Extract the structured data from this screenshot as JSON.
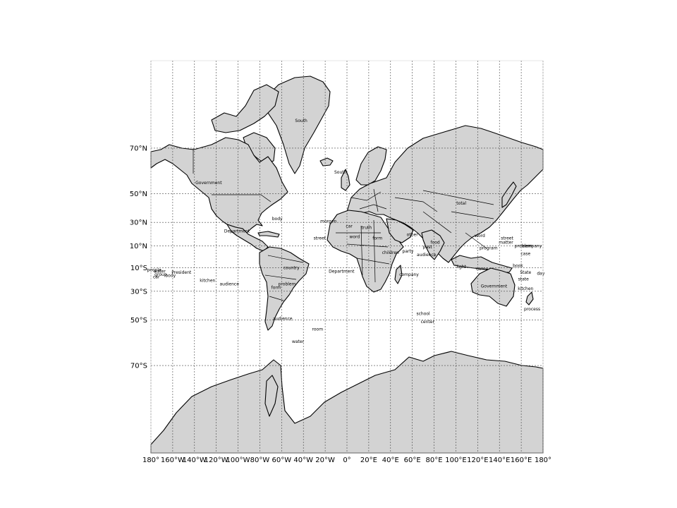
{
  "map": {
    "projection": "mercator",
    "background": "#ffffff",
    "land_color": "#d3d3d3",
    "coast_color": "#000000",
    "lon_range": [
      -180,
      180
    ],
    "lat_range": [
      -85,
      85
    ],
    "meridian_ticks": [
      {
        "lon": -180,
        "label": "180°"
      },
      {
        "lon": -160,
        "label": "160°W"
      },
      {
        "lon": -140,
        "label": "140°W"
      },
      {
        "lon": -120,
        "label": "120°W"
      },
      {
        "lon": -100,
        "label": "100°W"
      },
      {
        "lon": -80,
        "label": "80°W"
      },
      {
        "lon": -60,
        "label": "60°W"
      },
      {
        "lon": -40,
        "label": "40°W"
      },
      {
        "lon": -20,
        "label": "20°W"
      },
      {
        "lon": 0,
        "label": "0°"
      },
      {
        "lon": 20,
        "label": "20°E"
      },
      {
        "lon": 40,
        "label": "40°E"
      },
      {
        "lon": 60,
        "label": "60°E"
      },
      {
        "lon": 80,
        "label": "80°E"
      },
      {
        "lon": 100,
        "label": "100°E"
      },
      {
        "lon": 120,
        "label": "120°E"
      },
      {
        "lon": 140,
        "label": "140°E"
      },
      {
        "lon": 160,
        "label": "160°E"
      },
      {
        "lon": 180,
        "label": "180°"
      }
    ],
    "parallel_ticks": [
      {
        "lat": 70,
        "label": "70°N"
      },
      {
        "lat": 50,
        "label": "50°N"
      },
      {
        "lat": 30,
        "label": "30°N"
      },
      {
        "lat": 10,
        "label": "10°N"
      },
      {
        "lat": -10,
        "label": "10°S"
      },
      {
        "lat": -30,
        "label": "30°S"
      },
      {
        "lat": -50,
        "label": "50°S"
      },
      {
        "lat": -70,
        "label": "70°S"
      }
    ],
    "labels": [
      {
        "text": "South",
        "lon": -42,
        "lat": 77
      },
      {
        "text": "South",
        "lon": -6,
        "lat": 61
      },
      {
        "text": "Government",
        "lon": -127,
        "lat": 56
      },
      {
        "text": "body",
        "lon": -64,
        "lat": 33
      },
      {
        "text": "Department",
        "lon": -101,
        "lat": 23
      },
      {
        "text": "country",
        "lon": -51,
        "lat": -10
      },
      {
        "text": "problem",
        "lon": -55,
        "lat": -24
      },
      {
        "text": "form",
        "lon": -65,
        "lat": -27
      },
      {
        "text": "audience",
        "lon": -59,
        "lat": -49
      },
      {
        "text": "water",
        "lon": -45,
        "lat": -61
      },
      {
        "text": "room",
        "lon": -27,
        "lat": -55
      },
      {
        "text": "Department",
        "lon": -5,
        "lat": -13
      },
      {
        "text": "President",
        "lon": -152,
        "lat": -14
      },
      {
        "text": "kitchen",
        "lon": -128,
        "lat": -21
      },
      {
        "text": "audience",
        "lon": -108,
        "lat": -24
      },
      {
        "text": "people",
        "lon": -177,
        "lat": -12
      },
      {
        "text": "water",
        "lon": -172,
        "lat": -13
      },
      {
        "text": "group",
        "lon": -171,
        "lat": -16
      },
      {
        "text": "body",
        "lon": -162,
        "lat": -17
      },
      {
        "text": "car",
        "lon": -175,
        "lat": -18
      },
      {
        "text": "morgen",
        "lon": -17,
        "lat": 31
      },
      {
        "text": "street",
        "lon": -25,
        "lat": 17
      },
      {
        "text": "car",
        "lon": 2,
        "lat": 27
      },
      {
        "text": "truth",
        "lon": 18,
        "lat": 26
      },
      {
        "text": "word",
        "lon": 7,
        "lat": 18
      },
      {
        "text": "form",
        "lon": 28,
        "lat": 17
      },
      {
        "text": "children",
        "lon": 40,
        "lat": 4
      },
      {
        "text": "party",
        "lon": 56,
        "lat": 5
      },
      {
        "text": "company",
        "lon": 57,
        "lat": -16
      },
      {
        "text": "audience",
        "lon": 73,
        "lat": 2
      },
      {
        "text": "past",
        "lon": 74,
        "lat": 9
      },
      {
        "text": "food",
        "lon": 81,
        "lat": 13
      },
      {
        "text": "school",
        "lon": 70,
        "lat": -46
      },
      {
        "text": "center",
        "lon": 74,
        "lat": -51
      },
      {
        "text": "other",
        "lon": 60,
        "lat": 20
      },
      {
        "text": "total",
        "lon": 105,
        "lat": 44
      },
      {
        "text": "word",
        "lon": 122,
        "lat": 19
      },
      {
        "text": "program",
        "lon": 130,
        "lat": 8
      },
      {
        "text": "light",
        "lon": 105,
        "lat": -9
      },
      {
        "text": "street",
        "lon": 147,
        "lat": 17
      },
      {
        "text": "matter",
        "lon": 146,
        "lat": 13
      },
      {
        "text": "problem",
        "lon": 162,
        "lat": 10
      },
      {
        "text": "company",
        "lon": 170,
        "lat": 10
      },
      {
        "text": "case",
        "lon": 164,
        "lat": 3
      },
      {
        "text": "State",
        "lon": 164,
        "lat": -14
      },
      {
        "text": "state",
        "lon": 162,
        "lat": -20
      },
      {
        "text": "kitchen",
        "lon": 164,
        "lat": -28
      },
      {
        "text": "Government",
        "lon": 135,
        "lat": -26
      },
      {
        "text": "process",
        "lon": 170,
        "lat": -43
      },
      {
        "text": "day",
        "lon": 178,
        "lat": -15
      },
      {
        "text": "book",
        "lon": 157,
        "lat": -8
      },
      {
        "text": "name",
        "lon": 124,
        "lat": -11
      }
    ]
  }
}
